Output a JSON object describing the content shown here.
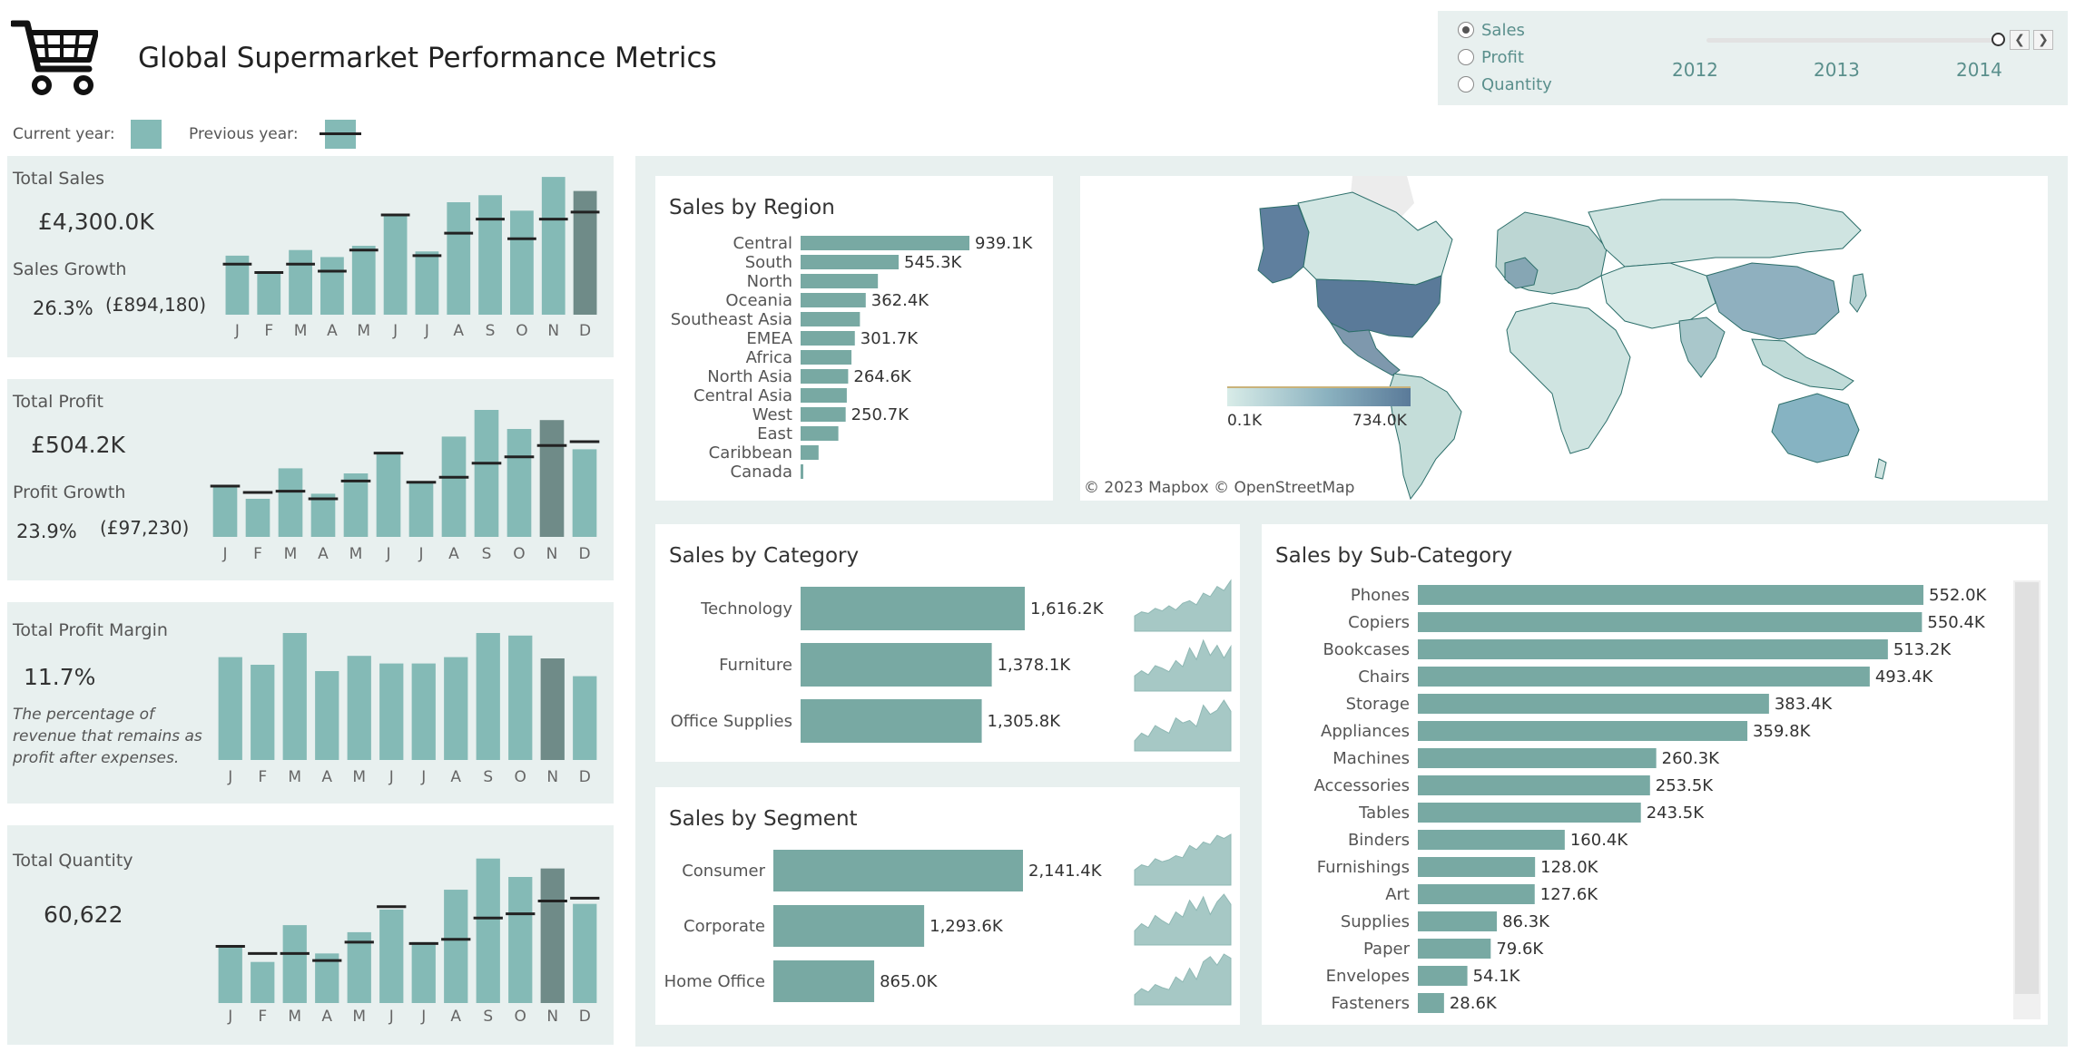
{
  "header": {
    "title": "Global Supermarket Performance Metrics",
    "legend_current": "Current year:",
    "legend_previous": "Previous year:"
  },
  "controls": {
    "measures": [
      {
        "label": "Sales",
        "selected": true
      },
      {
        "label": "Profit",
        "selected": false
      },
      {
        "label": "Quantity",
        "selected": false
      }
    ],
    "years": [
      "2012",
      "2013",
      "2014"
    ],
    "prev_icon": "chevron-left-icon",
    "next_icon": "chevron-right-icon"
  },
  "colors": {
    "bar": "#84bab6",
    "bar_highlight": "#6f8b88",
    "bar_dark": "#78a9a3",
    "panel_bg": "#e8f0ef",
    "map_dark": "#5a7a99",
    "map_light": "#cfe4e1"
  },
  "kpis": {
    "sales": {
      "label": "Total Sales",
      "value": "£4,300.0K",
      "growth_label": "Sales Growth",
      "growth_pct": "26.3%",
      "growth_abs": "(£894,180)"
    },
    "profit": {
      "label": "Total Profit",
      "value": "£504.2K",
      "growth_label": "Profit Growth",
      "growth_pct": "23.9%",
      "growth_abs": "(£97,230)"
    },
    "margin": {
      "label": "Total Profit Margin",
      "value": "11.7%",
      "note": "The percentage of revenue that remains as profit after expenses."
    },
    "quantity": {
      "label": "Total Quantity",
      "value": "60,622"
    }
  },
  "map": {
    "legend_min": "0.1K",
    "legend_max": "734.0K",
    "attribution": "© 2023 Mapbox  © OpenStreetMap"
  },
  "titles": {
    "region": "Sales by Region",
    "category": "Sales by Category",
    "segment": "Sales by Segment",
    "subcategory": "Sales by Sub-Category"
  },
  "chart_data": [
    {
      "type": "bar",
      "name": "monthly-sales",
      "categories": [
        "J",
        "F",
        "M",
        "A",
        "M",
        "J",
        "J",
        "A",
        "S",
        "O",
        "N",
        "D"
      ],
      "series": [
        {
          "name": "Current year",
          "values": [
            42,
            31,
            46,
            41,
            49,
            70,
            45,
            80,
            85,
            74,
            98,
            88
          ]
        },
        {
          "name": "Previous year",
          "values": [
            36,
            30,
            36,
            31,
            46,
            71,
            42,
            58,
            68,
            54,
            68,
            73
          ]
        }
      ],
      "highlight_index": 11,
      "ylim": [
        0,
        100
      ]
    },
    {
      "type": "bar",
      "name": "monthly-profit",
      "categories": [
        "J",
        "F",
        "M",
        "A",
        "M",
        "J",
        "J",
        "A",
        "S",
        "O",
        "N",
        "D"
      ],
      "series": [
        {
          "name": "Current year",
          "values": [
            39,
            30,
            54,
            34,
            50,
            65,
            43,
            79,
            100,
            85,
            92,
            69
          ]
        },
        {
          "name": "Previous year",
          "values": [
            40,
            35,
            36,
            30,
            44,
            66,
            43,
            47,
            58,
            63,
            72,
            75
          ]
        }
      ],
      "highlight_index": 10,
      "ylim": [
        0,
        100
      ]
    },
    {
      "type": "bar",
      "name": "monthly-margin",
      "categories": [
        "J",
        "F",
        "M",
        "A",
        "M",
        "J",
        "J",
        "A",
        "S",
        "O",
        "N",
        "D"
      ],
      "series": [
        {
          "name": "Current year",
          "values": [
            81,
            75,
            100,
            70,
            82,
            76,
            76,
            81,
            100,
            98,
            80,
            66
          ]
        }
      ],
      "highlight_index": 10,
      "ylim": [
        0,
        100
      ]
    },
    {
      "type": "bar",
      "name": "monthly-quantity",
      "categories": [
        "J",
        "F",
        "M",
        "A",
        "M",
        "J",
        "J",
        "A",
        "S",
        "O",
        "N",
        "D"
      ],
      "series": [
        {
          "name": "Current year",
          "values": [
            41,
            29,
            55,
            35,
            50,
            66,
            43,
            80,
            102,
            89,
            95,
            70
          ]
        },
        {
          "name": "Previous year",
          "values": [
            40,
            35,
            35,
            30,
            43,
            68,
            42,
            45,
            60,
            63,
            72,
            74
          ]
        }
      ],
      "highlight_index": 10,
      "ylim": [
        0,
        105
      ]
    },
    {
      "type": "bar",
      "name": "sales-by-region",
      "categories": [
        "Central",
        "South",
        "North",
        "Oceania",
        "Southeast Asia",
        "EMEA",
        "Africa",
        "North Asia",
        "Central Asia",
        "West",
        "East",
        "Caribbean",
        "Canada"
      ],
      "values": [
        939.1,
        545.3,
        430,
        362.4,
        330,
        301.7,
        283,
        264.6,
        257,
        250.7,
        210,
        100,
        15
      ],
      "labels": [
        "939.1K",
        "545.3K",
        "",
        "362.4K",
        "",
        "301.7K",
        "",
        "264.6K",
        "",
        "250.7K",
        "",
        "",
        ""
      ],
      "xlim": [
        0,
        939.1
      ]
    },
    {
      "type": "bar",
      "name": "sales-by-category",
      "categories": [
        "Technology",
        "Furniture",
        "Office Supplies"
      ],
      "values": [
        1616.2,
        1378.1,
        1305.8
      ],
      "labels": [
        "1,616.2K",
        "1,378.1K",
        "1,305.8K"
      ],
      "xlim": [
        0,
        1616.2
      ]
    },
    {
      "type": "bar",
      "name": "sales-by-segment",
      "categories": [
        "Consumer",
        "Corporate",
        "Home Office"
      ],
      "values": [
        2141.4,
        1293.6,
        865.0
      ],
      "labels": [
        "2,141.4K",
        "1,293.6K",
        "865.0K"
      ],
      "xlim": [
        0,
        2141.4
      ]
    },
    {
      "type": "bar",
      "name": "sales-by-subcategory",
      "categories": [
        "Phones",
        "Copiers",
        "Bookcases",
        "Chairs",
        "Storage",
        "Appliances",
        "Machines",
        "Accessories",
        "Tables",
        "Binders",
        "Furnishings",
        "Art",
        "Supplies",
        "Paper",
        "Envelopes",
        "Fasteners"
      ],
      "values": [
        552.0,
        550.4,
        513.2,
        493.4,
        383.4,
        359.8,
        260.3,
        253.5,
        243.5,
        160.4,
        128.0,
        127.6,
        86.3,
        79.6,
        54.1,
        28.6
      ],
      "labels": [
        "552.0K",
        "550.4K",
        "513.2K",
        "493.4K",
        "383.4K",
        "359.8K",
        "260.3K",
        "253.5K",
        "243.5K",
        "160.4K",
        "128.0K",
        "127.6K",
        "86.3K",
        "79.6K",
        "54.1K",
        "28.6K"
      ],
      "xlim": [
        0,
        552.0
      ]
    },
    {
      "type": "area",
      "name": "category-sparklines",
      "series": [
        {
          "name": "Technology",
          "values": [
            30,
            38,
            35,
            45,
            40,
            50,
            42,
            55,
            60,
            52,
            75,
            68,
            88,
            80,
            100
          ]
        },
        {
          "name": "Furniture",
          "values": [
            30,
            40,
            32,
            50,
            45,
            38,
            60,
            48,
            85,
            62,
            100,
            70,
            90,
            65,
            88
          ]
        },
        {
          "name": "Office Supplies",
          "values": [
            20,
            35,
            28,
            50,
            42,
            35,
            65,
            55,
            60,
            48,
            90,
            72,
            80,
            100,
            78
          ]
        }
      ]
    },
    {
      "type": "area",
      "name": "segment-sparklines",
      "series": [
        {
          "name": "Consumer",
          "values": [
            30,
            40,
            36,
            52,
            46,
            50,
            58,
            54,
            78,
            70,
            85,
            80,
            98,
            92,
            100
          ]
        },
        {
          "name": "Corporate",
          "values": [
            28,
            42,
            34,
            58,
            48,
            40,
            65,
            55,
            88,
            68,
            95,
            60,
            85,
            100,
            80
          ]
        },
        {
          "name": "Home Office",
          "values": [
            20,
            32,
            25,
            40,
            34,
            30,
            55,
            45,
            72,
            50,
            85,
            95,
            78,
            100,
            92
          ]
        }
      ]
    }
  ]
}
